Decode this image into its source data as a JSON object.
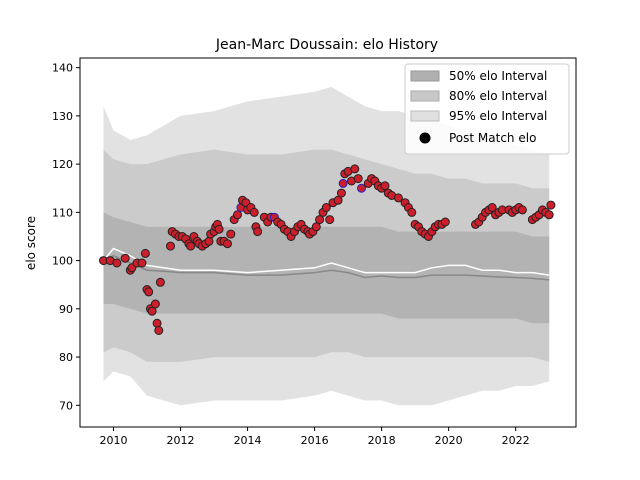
{
  "chart_data": {
    "type": "scatter",
    "title": "Jean-Marc Doussain: elo History",
    "xlabel": "",
    "ylabel": "elo score",
    "xlim": [
      2009.0,
      2023.8
    ],
    "ylim": [
      65.5,
      142
    ],
    "x_ticks": [
      "2010",
      "2012",
      "2014",
      "2016",
      "2018",
      "2020",
      "2022"
    ],
    "y_ticks": [
      "70",
      "80",
      "90",
      "100",
      "110",
      "120",
      "130",
      "140"
    ],
    "grid": false,
    "legend": {
      "position": "top-right",
      "entries": [
        {
          "label": "50% elo Interval",
          "kind": "patch",
          "color": "#b0b0b0"
        },
        {
          "label": "80% elo Interval",
          "kind": "patch",
          "color": "#c8c8c8"
        },
        {
          "label": "95% elo Interval",
          "kind": "patch",
          "color": "#e0e0e0"
        },
        {
          "label": "Post Match elo",
          "kind": "marker",
          "color": "#000000"
        }
      ]
    },
    "colors": {
      "band95": "#e2e2e2",
      "band80": "#cbcbcb",
      "band50": "#b3b3b3",
      "median": "#888888",
      "mean": "#ffffff",
      "point_fill": "#cc1f2b",
      "point_edge": "#222222",
      "point_edge_alt": "#2222cc"
    },
    "bands": {
      "x": [
        2009.7,
        2010.0,
        2010.5,
        2011.0,
        2011.5,
        2012.0,
        2013.0,
        2014.0,
        2015.0,
        2016.0,
        2016.5,
        2017.0,
        2017.5,
        2018.0,
        2018.5,
        2019.0,
        2019.5,
        2020.0,
        2020.5,
        2021.0,
        2021.5,
        2022.0,
        2022.5,
        2023.0
      ],
      "p95_hi": [
        132,
        127,
        125,
        126,
        128,
        130,
        131,
        133,
        134,
        135,
        136,
        134,
        132,
        131,
        131,
        130,
        129,
        128,
        127,
        126,
        125,
        124,
        123,
        122
      ],
      "p95_lo": [
        75,
        77,
        76,
        72,
        71,
        70,
        71,
        71,
        71,
        72,
        73,
        72,
        71,
        71,
        70,
        70,
        70,
        71,
        72,
        73,
        73,
        74,
        74,
        75
      ],
      "p80_hi": [
        123,
        121,
        120,
        120,
        121,
        122,
        123,
        122,
        122,
        123,
        123,
        122,
        121,
        120,
        119,
        118,
        118,
        117,
        117,
        116,
        116,
        116,
        115,
        115
      ],
      "p80_lo": [
        81,
        82,
        81,
        79,
        79,
        79,
        80,
        80,
        80,
        80,
        81,
        81,
        80,
        80,
        80,
        80,
        80,
        80,
        80,
        80,
        80,
        80,
        80,
        79
      ],
      "p50_hi": [
        110,
        109,
        108,
        107,
        107,
        107,
        107,
        107,
        107,
        107,
        107,
        107,
        107,
        107,
        106,
        106,
        106,
        106,
        106,
        106,
        106,
        106,
        105,
        105
      ],
      "p50_lo": [
        91,
        91,
        90,
        89,
        89,
        89,
        89,
        89,
        89,
        89,
        89,
        89,
        89,
        89,
        88,
        88,
        88,
        88,
        88,
        88,
        88,
        88,
        87,
        87
      ],
      "median": [
        100,
        101,
        99.5,
        98,
        97.8,
        97.5,
        97.5,
        97,
        97,
        97.5,
        98,
        97.5,
        96.5,
        96.8,
        96.5,
        96.5,
        97,
        97,
        97,
        96.8,
        96.6,
        96.5,
        96.3,
        96
      ],
      "mean": [
        100,
        102.5,
        101,
        99,
        98.5,
        98,
        98,
        97.5,
        98,
        98.5,
        99.5,
        98.5,
        97.5,
        97.5,
        97.5,
        97.5,
        98.5,
        99,
        99,
        98,
        98,
        97.5,
        97.5,
        97
      ]
    },
    "series": [
      {
        "name": "Post Match elo",
        "x": [
          2009.7,
          2009.9,
          2010.1,
          2010.35,
          2010.5,
          2010.55,
          2010.7,
          2010.85,
          2010.95,
          2011.0,
          2011.05,
          2011.1,
          2011.15,
          2011.25,
          2011.3,
          2011.35,
          2011.4,
          2011.7,
          2011.75,
          2011.85,
          2011.95,
          2012.05,
          2012.15,
          2012.25,
          2012.3,
          2012.4,
          2012.5,
          2012.55,
          2012.65,
          2012.75,
          2012.85,
          2012.9,
          2013.0,
          2013.05,
          2013.1,
          2013.15,
          2013.2,
          2013.3,
          2013.4,
          2013.5,
          2013.6,
          2013.7,
          2013.8,
          2013.85,
          2013.95,
          2014.0,
          2014.1,
          2014.2,
          2014.25,
          2014.3,
          2014.5,
          2014.6,
          2014.7,
          2014.8,
          2014.9,
          2015.0,
          2015.1,
          2015.2,
          2015.3,
          2015.4,
          2015.5,
          2015.6,
          2015.7,
          2015.8,
          2015.85,
          2015.95,
          2016.05,
          2016.15,
          2016.25,
          2016.35,
          2016.45,
          2016.55,
          2016.7,
          2016.8,
          2016.85,
          2016.9,
          2017.0,
          2017.1,
          2017.2,
          2017.3,
          2017.4,
          2017.6,
          2017.7,
          2017.8,
          2017.9,
          2018.0,
          2018.1,
          2018.2,
          2018.3,
          2018.5,
          2018.7,
          2018.8,
          2018.9,
          2019.0,
          2019.1,
          2019.2,
          2019.3,
          2019.4,
          2019.5,
          2019.6,
          2019.7,
          2019.8,
          2019.9,
          2020.8,
          2020.9,
          2021.0,
          2021.1,
          2021.2,
          2021.3,
          2021.4,
          2021.5,
          2021.6,
          2021.8,
          2021.9,
          2022.0,
          2022.1,
          2022.2,
          2022.5,
          2022.6,
          2022.7,
          2022.8,
          2022.9,
          2023.0,
          2023.05
        ],
        "y": [
          100,
          100,
          99.5,
          100.5,
          98,
          98.5,
          99.5,
          99.5,
          101.5,
          94,
          93.5,
          90,
          89.5,
          91,
          87,
          85.5,
          95.5,
          103,
          106,
          105.5,
          105,
          105,
          104.5,
          103.5,
          103,
          105,
          104,
          103.5,
          103,
          103.5,
          104,
          105.5,
          106,
          107,
          107.5,
          106.5,
          104,
          104,
          103.5,
          105.5,
          108.5,
          109.5,
          111,
          112.5,
          112,
          110.5,
          111,
          110,
          107,
          106,
          109,
          108,
          109,
          109,
          108,
          107.5,
          106.5,
          106,
          105,
          106,
          107,
          107.5,
          106.5,
          106,
          105.5,
          106,
          107,
          108.5,
          110,
          111,
          108.5,
          112,
          112.5,
          114,
          116,
          118,
          118.5,
          116.5,
          119,
          117,
          115,
          116,
          117,
          116.5,
          115.5,
          115,
          115.5,
          114,
          113.5,
          113,
          112,
          111,
          110,
          107.5,
          107,
          106,
          105.5,
          105,
          106,
          107,
          107.5,
          107.5,
          108,
          107.5,
          108,
          109,
          110,
          110.5,
          111,
          109.5,
          110,
          110.5,
          110.5,
          110,
          110.5,
          111,
          110.5,
          108.5,
          109,
          109.5,
          110.5,
          110,
          109.5,
          111.5
        ],
        "edge_alt_indices": [
          42,
          53,
          74,
          80
        ]
      }
    ]
  }
}
